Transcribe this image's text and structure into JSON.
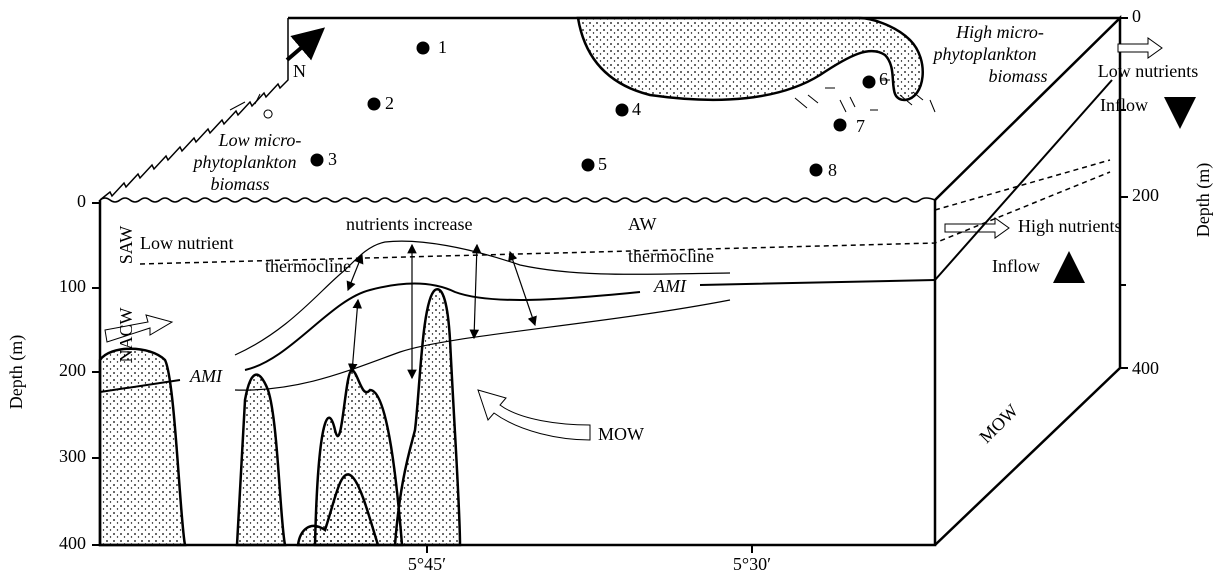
{
  "top_surface": {
    "north_label": "N",
    "stations": [
      "1",
      "2",
      "3",
      "4",
      "5",
      "6",
      "7",
      "8"
    ],
    "high_biomass": [
      "High micro-",
      "phytoplankton",
      "biomass"
    ],
    "low_biomass": [
      "Low micro-",
      "phytoplankton",
      "biomass"
    ]
  },
  "right_axis": {
    "ticks": [
      "0",
      "200",
      "400"
    ],
    "title": "Depth (m)"
  },
  "right_labels": {
    "low_nutrients": "Low nutrients",
    "inflow_down": "Inflow",
    "high_nutrients": "High nutrients",
    "inflow_up": "Inflow"
  },
  "section": {
    "saw": "SAW",
    "nacw": "NACW",
    "aw": "AW",
    "mow": "MOW",
    "mow_side": "MOW",
    "low_nutrient": "Low nutrient",
    "thermocline_left": "thermocline",
    "thermocline_right": "thermocline",
    "nutrients_increase": "nutrients increase",
    "ami_left": "AMI",
    "ami_right": "AMI"
  },
  "left_axis": {
    "ticks": [
      "0",
      "100",
      "200",
      "300",
      "400"
    ],
    "title": "Depth (m)"
  },
  "bottom_axis": {
    "ticks": [
      "5°45′",
      "5°30′"
    ]
  }
}
